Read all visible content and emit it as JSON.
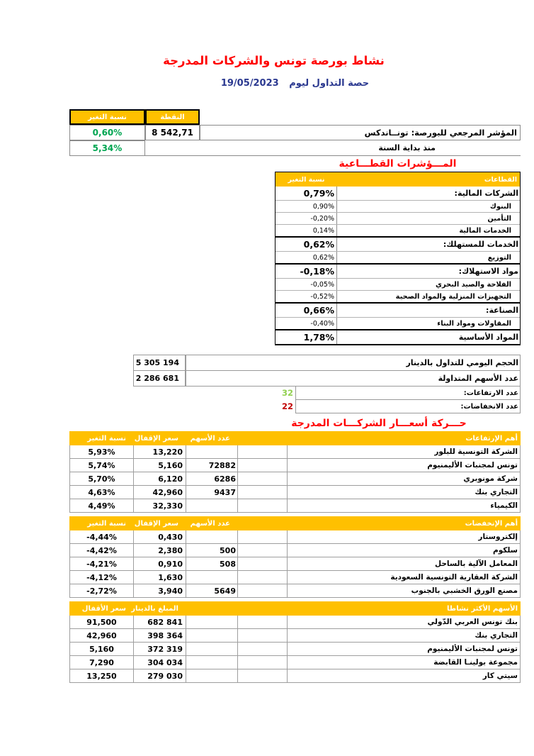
{
  "colors": {
    "gold": "#FFC000",
    "title_red": "#FF0000",
    "navy": "#2B3990",
    "green": "#00A551",
    "light_green": "#92D050",
    "dark_red": "#C00000"
  },
  "header": {
    "title": "نشاط بورصة تونس والشركات المدرجة",
    "session_label": "حصة التداول ليوم",
    "session_date": "19/05/2023"
  },
  "index_table": {
    "point_header": "النقطة",
    "change_header": "نسبة التغير",
    "rows": [
      {
        "label": "المؤشر المرجعي للبورصة: تونــاندكس",
        "point": "8 542,71",
        "change": "0,60%"
      },
      {
        "label": "منذ بداية السنة",
        "point": "",
        "change": "5,34%"
      }
    ]
  },
  "sectors": {
    "title": "المـــؤشرات القطـــاعية",
    "name_header": "القطاعات",
    "change_header": "نسبة التغير",
    "rows": [
      {
        "name": "الشركات المالية:",
        "value": "0,79%",
        "bold": true
      },
      {
        "name": "البنوك",
        "value": "0,90%",
        "bold": false
      },
      {
        "name": "التأمين",
        "value": "-0,20%",
        "bold": false
      },
      {
        "name": "الخدمات المالية",
        "value": "0,14%",
        "bold": false
      },
      {
        "name": "الخدمات للمستهلك:",
        "value": "0,62%",
        "bold": true
      },
      {
        "name": "التوزيع",
        "value": "0,62%",
        "bold": false
      },
      {
        "name": "مواد الاستهلاك:",
        "value": "-0,18%",
        "bold": true
      },
      {
        "name": "الفلاحة والصيد البحري",
        "value": "-0,05%",
        "bold": false
      },
      {
        "name": "التجهيزات المنزلية والمواد الصحية",
        "value": "-0,52%",
        "bold": false
      },
      {
        "name": "الصناعة:",
        "value": "0,66%",
        "bold": true
      },
      {
        "name": "المقاولات ومواد البناء",
        "value": "-0,40%",
        "bold": false
      },
      {
        "name": "المواد الأساسية",
        "value": "1,78%",
        "bold": true
      }
    ]
  },
  "summary": {
    "volume_rows": [
      {
        "label": "الحجم اليومي للتداول بالدينار",
        "value": "5 305 194"
      },
      {
        "label": "عدد الأسهم المتداولة",
        "value": "2 286 681"
      }
    ],
    "count_rows": [
      {
        "label": "عدد الارتفاعات:",
        "value": "32",
        "color_key": "light_green"
      },
      {
        "label": "عدد الانخفاضات:",
        "value": "22",
        "color_key": "dark_red"
      }
    ]
  },
  "movement": {
    "title": "حـــركة أسعـــار الشركـــات المدرجة",
    "tables": [
      {
        "id": "top-gainers",
        "name_header": "أهم الإرتفاعات",
        "c3_header": "عدد الأسهم",
        "c4_header": "سعر الإقفال",
        "c5_header": "نسبة التغير",
        "rows": [
          {
            "name": "الشركة التونسية للبلور",
            "c3": "",
            "c4": "13,220",
            "c5": "5,93%"
          },
          {
            "name": "تونس لمجنبات الأليمنيوم",
            "c3": "72882",
            "c4": "5,160",
            "c5": "5,74%"
          },
          {
            "name": "شركة مونوبري",
            "c3": "6286",
            "c4": "6,120",
            "c5": "5,70%"
          },
          {
            "name": "التجاري بنك",
            "c3": "9437",
            "c4": "42,960",
            "c5": "4,63%"
          },
          {
            "name": "الكيمياء",
            "c3": "",
            "c4": "32,330",
            "c5": "4,49%"
          }
        ]
      },
      {
        "id": "top-losers",
        "name_header": "أهم الإنخفضات",
        "c3_header": "عدد الأسهم",
        "c4_header": "سعر الإقفال",
        "c5_header": "نسبة التغير",
        "rows": [
          {
            "name": "إلكتروستار",
            "c3": "",
            "c4": "0,430",
            "c5": "-4,44%"
          },
          {
            "name": "سلكوم",
            "c3": "500",
            "c4": "2,380",
            "c5": "-4,42%"
          },
          {
            "name": "المعامل الآلية بالساحل",
            "c3": "508",
            "c4": "0,910",
            "c5": "-4,21%"
          },
          {
            "name": "الشركة العقارية التونسية السعودية",
            "c3": "",
            "c4": "1,630",
            "c5": "-4,12%"
          },
          {
            "name": "مصنع الورق الخشبي بالجنوب",
            "c3": "5649",
            "c4": "3,940",
            "c5": "-2,72%"
          }
        ]
      },
      {
        "id": "most-active",
        "name_header": "الأسهم الأكثر نشاطا",
        "c3_header": "",
        "c4_header": "المبلغ بالدينار",
        "c5_header": "سعر الأقفال",
        "rows": [
          {
            "name": "بنك تونس العربي الدّولي",
            "c3": "",
            "c4": "682 841",
            "c5": "91,500"
          },
          {
            "name": "التجاري بنك",
            "c3": "",
            "c4": "398 364",
            "c5": "42,960"
          },
          {
            "name": "تونس لمجنبات الأليمنيوم",
            "c3": "",
            "c4": "372 319",
            "c5": "5,160"
          },
          {
            "name": "مجموعة بولينـا القابضة",
            "c3": "",
            "c4": "304 034",
            "c5": "7,290"
          },
          {
            "name": "سيتي كار",
            "c3": "",
            "c4": "279 030",
            "c5": "13,250"
          }
        ]
      }
    ]
  }
}
